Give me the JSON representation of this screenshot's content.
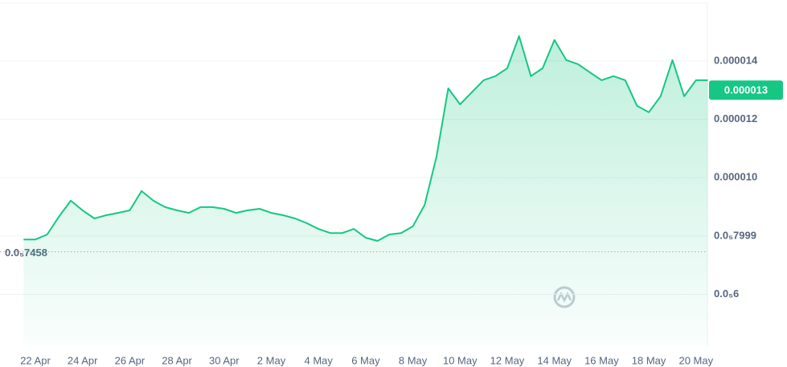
{
  "chart_data": {
    "type": "line",
    "categories": [
      null,
      "22 Apr",
      null,
      null,
      null,
      "24 Apr",
      null,
      null,
      null,
      "26 Apr",
      null,
      null,
      null,
      "28 Apr",
      null,
      null,
      null,
      "30 Apr",
      null,
      null,
      null,
      "2 May",
      null,
      null,
      null,
      "4 May",
      null,
      null,
      null,
      "6 May",
      null,
      null,
      null,
      "8 May",
      null,
      null,
      null,
      "10 May",
      null,
      null,
      null,
      "12 May",
      null,
      null,
      null,
      "14 May",
      null,
      null,
      null,
      "16 May",
      null,
      null,
      null,
      "18 May",
      null,
      null,
      null,
      "20 May",
      null
    ],
    "series": [
      {
        "color": "#16c784",
        "values": [
          7.88e-06,
          7.88e-06,
          8.05e-06,
          8.66e-06,
          9.21e-06,
          8.88e-06,
          8.6e-06,
          8.71e-06,
          8.79e-06,
          8.88e-06,
          9.54e-06,
          9.21e-06,
          8.99e-06,
          8.88e-06,
          8.79e-06,
          8.99e-06,
          8.99e-06,
          8.93e-06,
          8.79e-06,
          8.88e-06,
          8.93e-06,
          8.79e-06,
          8.71e-06,
          8.6e-06,
          8.44e-06,
          8.24e-06,
          8.1e-06,
          8.1e-06,
          8.24e-06,
          7.94e-06,
          7.83e-06,
          8.05e-06,
          8.1e-06,
          8.33e-06,
          9.07e-06,
          1.072e-05,
          1.306e-05,
          1.251e-05,
          1.293e-05,
          1.334e-05,
          1.348e-05,
          1.375e-05,
          1.485e-05,
          1.348e-05,
          1.375e-05,
          1.472e-05,
          1.403e-05,
          1.389e-05,
          1.361e-05,
          1.334e-05,
          1.348e-05,
          1.334e-05,
          1.246e-05,
          1.224e-05,
          1.279e-05,
          1.403e-05,
          1.279e-05,
          1.334e-05,
          1.334e-05
        ]
      }
    ],
    "ylim": [
      4.25e-06,
      1.598e-05
    ],
    "yticks": [
      1.4e-05,
      1.2e-05,
      {
        "value": 1e-05,
        "label": "0.000010"
      },
      {
        "value": 7.999e-06,
        "label": "0.0₅7999"
      },
      {
        "value": 6e-06,
        "label": "0.0₅6"
      }
    ],
    "current_price": 1.3e-05,
    "low_line": {
      "value": 7.458e-06,
      "label": "0.0₅7458"
    },
    "watermark": "CoinMarketCap",
    "currency": "USD",
    "grid": true
  }
}
